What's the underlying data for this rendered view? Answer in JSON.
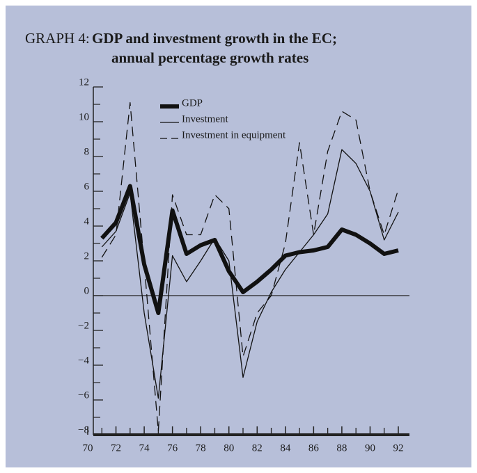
{
  "chart_data": {
    "type": "line",
    "label": "GRAPH 4:",
    "title": [
      "GDP and investment growth in the EC;",
      "annual percentage growth rates"
    ],
    "x": [
      71,
      72,
      73,
      74,
      75,
      76,
      77,
      78,
      79,
      80,
      81,
      82,
      83,
      84,
      85,
      86,
      87,
      88,
      89,
      90,
      91,
      92
    ],
    "series": [
      {
        "name": "GDP",
        "color": "#111111",
        "width": 6,
        "dash": false,
        "values": [
          3.3,
          4.2,
          6.3,
          1.8,
          -1.0,
          4.9,
          2.4,
          2.9,
          3.2,
          1.4,
          0.2,
          0.8,
          1.5,
          2.3,
          2.5,
          2.6,
          2.8,
          3.8,
          3.5,
          3.0,
          2.4,
          2.6
        ]
      },
      {
        "name": "Investment",
        "color": "#111111",
        "width": 1.3,
        "dash": false,
        "values": [
          2.8,
          3.7,
          5.9,
          -1.0,
          -5.9,
          2.3,
          0.8,
          2.0,
          3.3,
          2.0,
          -4.7,
          -1.5,
          0.2,
          1.5,
          2.5,
          3.5,
          4.7,
          8.4,
          7.6,
          6.0,
          3.2,
          4.8
        ]
      },
      {
        "name": "Investment in equipment",
        "color": "#111111",
        "width": 1.3,
        "dash": true,
        "values": [
          2.2,
          3.5,
          11.1,
          1.8,
          -7.8,
          5.8,
          3.5,
          3.5,
          5.8,
          5.0,
          -3.5,
          -1.0,
          0.0,
          3.0,
          8.8,
          3.5,
          8.3,
          10.6,
          10.1,
          6.0,
          3.5,
          6.1
        ]
      }
    ],
    "xlim": [
      70,
      92
    ],
    "xticks": [
      70,
      72,
      74,
      76,
      78,
      80,
      82,
      84,
      86,
      88,
      90,
      92
    ],
    "xminorticks": [
      71,
      73,
      75,
      77,
      79,
      81,
      83,
      85,
      87,
      89,
      91
    ],
    "ylim": [
      -8,
      12
    ],
    "yticks": [
      12,
      10,
      8,
      6,
      4,
      2,
      0,
      {
        "value": -2,
        "label": "−2"
      },
      {
        "value": -4,
        "label": "−4"
      },
      {
        "value": -6,
        "label": "−6"
      },
      {
        "value": -8,
        "label": "−8"
      }
    ],
    "yminorticks": [
      11,
      9,
      7,
      5,
      3,
      1,
      -1,
      -3,
      -5,
      -7
    ],
    "zero_line": true,
    "legend": "top"
  }
}
